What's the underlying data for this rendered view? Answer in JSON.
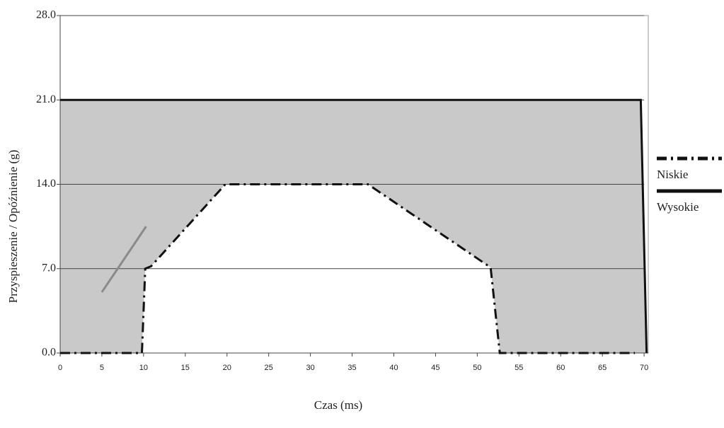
{
  "chart_data": {
    "type": "line",
    "x_label": "Czas  (ms)",
    "y_label": "Przyspieszenie  /  Opóźnienie  (g)",
    "xlim": [
      0,
      70.5
    ],
    "ylim": [
      0,
      28
    ],
    "xticks": [
      0,
      5,
      10,
      15,
      20,
      25,
      30,
      35,
      40,
      45,
      50,
      55,
      60,
      65,
      70
    ],
    "yticks": [
      {
        "value": 0,
        "label": "0.0"
      },
      {
        "value": 7,
        "label": "7.0"
      },
      {
        "value": 14,
        "label": "14.0"
      },
      {
        "value": 21,
        "label": "21.0"
      },
      {
        "value": 28,
        "label": "28.0"
      }
    ],
    "grid": true,
    "fill_color": "#c9c9c9",
    "series": [
      {
        "name": "Niskie",
        "color": "#111111",
        "dash": "dashdot",
        "x": [
          0,
          9.8,
          10.2,
          10.9,
          19.8,
          36.9,
          51.6,
          52.7,
          68.9
        ],
        "values": [
          0,
          0,
          7,
          7.2,
          14,
          14,
          7.1,
          0,
          0
        ]
      },
      {
        "name": "Wysokie",
        "color": "#111111",
        "dash": "solid",
        "x": [
          0,
          69.6,
          70.3
        ],
        "values": [
          21,
          21,
          0
        ]
      }
    ],
    "segment": {
      "color": "#8a8a8a",
      "x": [
        5,
        10.3
      ],
      "values": [
        5.05,
        10.5
      ]
    }
  }
}
